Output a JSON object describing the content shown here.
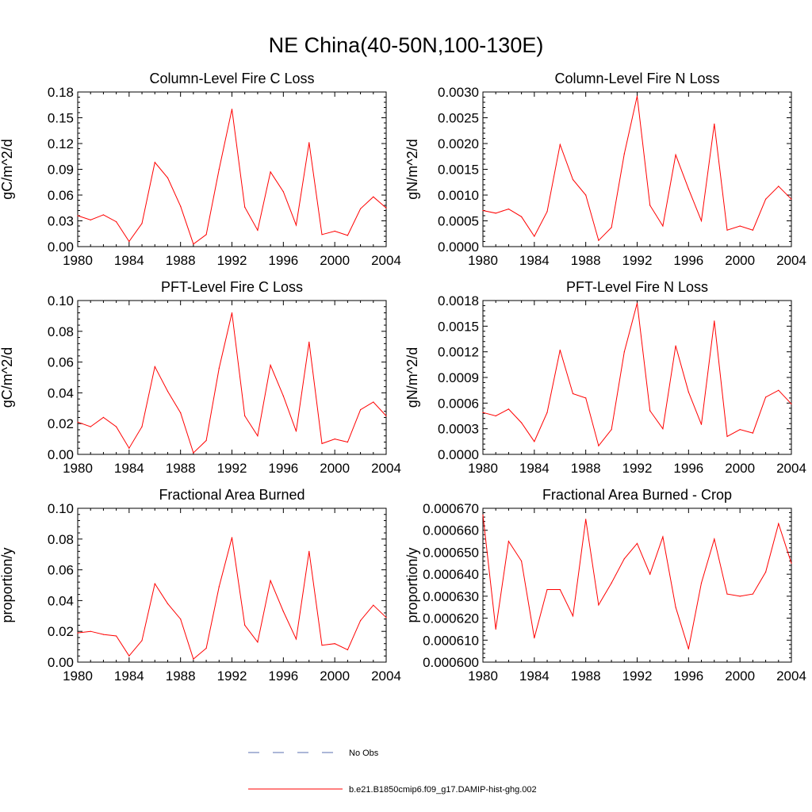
{
  "title": "NE China(40-50N,100-130E)",
  "colors": {
    "series": "#ff0000",
    "obs": "#5a6fb0",
    "axis": "#000000"
  },
  "legend": [
    {
      "label": "No Obs",
      "style": "dashed",
      "color": "#5a6fb0"
    },
    {
      "label": "b.e21.B1850cmip6.f09_g17.DAMIP-hist-ghg.002",
      "style": "solid",
      "color": "#ff0000"
    }
  ],
  "chart_data": [
    {
      "type": "line",
      "title": "Column-Level Fire C Loss",
      "ylabel": "gC/m^2/d",
      "xlim": [
        1980,
        2004
      ],
      "ylim": [
        0,
        0.18
      ],
      "xticks": [
        "1980",
        "1984",
        "1988",
        "1992",
        "1996",
        "2000",
        "2004"
      ],
      "yticks": [
        "0.00",
        "0.03",
        "0.06",
        "0.09",
        "0.12",
        "0.15",
        "0.18"
      ],
      "x": [
        1980,
        1981,
        1982,
        1983,
        1984,
        1985,
        1986,
        1987,
        1988,
        1989,
        1990,
        1991,
        1992,
        1993,
        1994,
        1995,
        1996,
        1997,
        1998,
        1999,
        2000,
        2001,
        2002,
        2003,
        2004
      ],
      "series": [
        {
          "values": [
            0.036,
            0.031,
            0.037,
            0.029,
            0.006,
            0.027,
            0.098,
            0.08,
            0.047,
            0.003,
            0.014,
            0.09,
            0.16,
            0.046,
            0.019,
            0.087,
            0.064,
            0.025,
            0.121,
            0.014,
            0.018,
            0.013,
            0.044,
            0.058,
            0.045
          ]
        }
      ]
    },
    {
      "type": "line",
      "title": "Column-Level Fire N Loss",
      "ylabel": "gN/m^2/d",
      "xlim": [
        1980,
        2004
      ],
      "ylim": [
        0,
        0.003
      ],
      "xticks": [
        "1980",
        "1984",
        "1988",
        "1992",
        "1996",
        "2000",
        "2004"
      ],
      "yticks": [
        "0.0000",
        "0.0005",
        "0.0010",
        "0.0015",
        "0.0020",
        "0.0025",
        "0.0030"
      ],
      "x": [
        1980,
        1981,
        1982,
        1983,
        1984,
        1985,
        1986,
        1987,
        1988,
        1989,
        1990,
        1991,
        1992,
        1993,
        1994,
        1995,
        1996,
        1997,
        1998,
        1999,
        2000,
        2001,
        2002,
        2003,
        2004
      ],
      "series": [
        {
          "values": [
            0.0007,
            0.00065,
            0.00073,
            0.00058,
            0.0002,
            0.00068,
            0.00198,
            0.0013,
            0.001,
            0.00012,
            0.00037,
            0.0018,
            0.00292,
            0.0008,
            0.0004,
            0.00178,
            0.00112,
            0.0005,
            0.00238,
            0.00032,
            0.0004,
            0.00032,
            0.00092,
            0.00117,
            0.00092
          ]
        }
      ]
    },
    {
      "type": "line",
      "title": "PFT-Level Fire C Loss",
      "ylabel": "gC/m^2/d",
      "xlim": [
        1980,
        2004
      ],
      "ylim": [
        0,
        0.1
      ],
      "xticks": [
        "1980",
        "1984",
        "1988",
        "1992",
        "1996",
        "2000",
        "2004"
      ],
      "yticks": [
        "0.00",
        "0.02",
        "0.04",
        "0.06",
        "0.08",
        "0.10"
      ],
      "x": [
        1980,
        1981,
        1982,
        1983,
        1984,
        1985,
        1986,
        1987,
        1988,
        1989,
        1990,
        1991,
        1992,
        1993,
        1994,
        1995,
        1996,
        1997,
        1998,
        1999,
        2000,
        2001,
        2002,
        2003,
        2004
      ],
      "series": [
        {
          "values": [
            0.021,
            0.018,
            0.024,
            0.018,
            0.004,
            0.018,
            0.057,
            0.041,
            0.027,
            0.001,
            0.009,
            0.056,
            0.092,
            0.025,
            0.012,
            0.058,
            0.038,
            0.015,
            0.073,
            0.007,
            0.01,
            0.008,
            0.029,
            0.034,
            0.025
          ]
        }
      ]
    },
    {
      "type": "line",
      "title": "PFT-Level Fire N Loss",
      "ylabel": "gN/m^2/d",
      "xlim": [
        1980,
        2004
      ],
      "ylim": [
        0,
        0.0018
      ],
      "xticks": [
        "1980",
        "1984",
        "1988",
        "1992",
        "1996",
        "2000",
        "2004"
      ],
      "yticks": [
        "0.0000",
        "0.0003",
        "0.0006",
        "0.0009",
        "0.0012",
        "0.0015",
        "0.0018"
      ],
      "x": [
        1980,
        1981,
        1982,
        1983,
        1984,
        1985,
        1986,
        1987,
        1988,
        1989,
        1990,
        1991,
        1992,
        1993,
        1994,
        1995,
        1996,
        1997,
        1998,
        1999,
        2000,
        2001,
        2002,
        2003,
        2004
      ],
      "series": [
        {
          "values": [
            0.00049,
            0.00045,
            0.00053,
            0.00037,
            0.00015,
            0.00049,
            0.00122,
            0.00071,
            0.00066,
            0.0001,
            0.00029,
            0.0012,
            0.00177,
            0.00051,
            0.0003,
            0.00127,
            0.00073,
            0.00035,
            0.00156,
            0.00021,
            0.00029,
            0.00025,
            0.00067,
            0.00075,
            0.00059
          ]
        }
      ]
    },
    {
      "type": "line",
      "title": "Fractional Area Burned",
      "ylabel": "proportion/y",
      "xlim": [
        1980,
        2004
      ],
      "ylim": [
        0,
        0.1
      ],
      "xticks": [
        "1980",
        "1984",
        "1988",
        "1992",
        "1996",
        "2000",
        "2004"
      ],
      "yticks": [
        "0.00",
        "0.02",
        "0.04",
        "0.06",
        "0.08",
        "0.10"
      ],
      "x": [
        1980,
        1981,
        1982,
        1983,
        1984,
        1985,
        1986,
        1987,
        1988,
        1989,
        1990,
        1991,
        1992,
        1993,
        1994,
        1995,
        1996,
        1997,
        1998,
        1999,
        2000,
        2001,
        2002,
        2003,
        2004
      ],
      "series": [
        {
          "values": [
            0.019,
            0.02,
            0.018,
            0.017,
            0.004,
            0.014,
            0.051,
            0.038,
            0.028,
            0.002,
            0.009,
            0.049,
            0.081,
            0.024,
            0.013,
            0.053,
            0.033,
            0.015,
            0.072,
            0.011,
            0.012,
            0.008,
            0.027,
            0.037,
            0.029
          ]
        }
      ]
    },
    {
      "type": "line",
      "title": "Fractional Area Burned - Crop",
      "ylabel": "proportion/y",
      "xlim": [
        1980,
        2004
      ],
      "ylim": [
        0.0006,
        0.00067
      ],
      "xticks": [
        "1980",
        "1984",
        "1988",
        "1992",
        "1996",
        "2000",
        "2004"
      ],
      "yticks": [
        "0.000600",
        "0.000610",
        "0.000620",
        "0.000630",
        "0.000640",
        "0.000650",
        "0.000660",
        "0.000670"
      ],
      "x": [
        1980,
        1981,
        1982,
        1983,
        1984,
        1985,
        1986,
        1987,
        1988,
        1989,
        1990,
        1991,
        1992,
        1993,
        1994,
        1995,
        1996,
        1997,
        1998,
        1999,
        2000,
        2001,
        2002,
        2003,
        2004
      ],
      "series": [
        {
          "values": [
            0.000667,
            0.000615,
            0.000655,
            0.000646,
            0.000611,
            0.000633,
            0.000633,
            0.000621,
            0.000665,
            0.000626,
            0.000636,
            0.000647,
            0.000654,
            0.00064,
            0.000657,
            0.000625,
            0.000606,
            0.000636,
            0.000656,
            0.000631,
            0.00063,
            0.000631,
            0.000641,
            0.000663,
            0.000645
          ]
        }
      ]
    }
  ]
}
